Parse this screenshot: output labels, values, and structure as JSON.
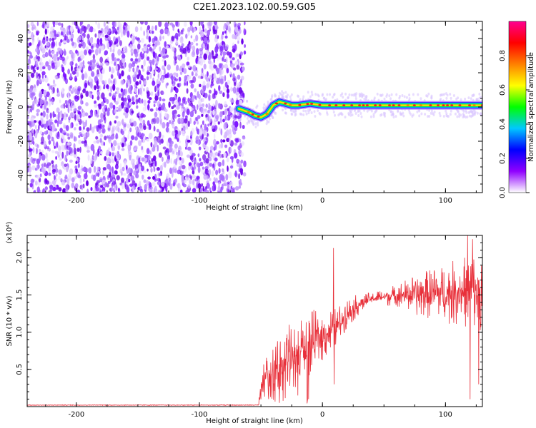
{
  "title": "C2E1.2023.102.00.59.G05",
  "chart_data": [
    {
      "type": "heatmap",
      "xlabel": "Height of straight line (km)",
      "ylabel": "Frequency (Hz)",
      "xlim": [
        -240,
        130
      ],
      "ylim": [
        -50,
        50
      ],
      "xticks": [
        -200,
        -100,
        0,
        100
      ],
      "yticks": [
        -40,
        -20,
        0,
        20,
        40
      ],
      "noise_region_x": [
        -240,
        -63
      ],
      "signal_track": {
        "x": [
          -68,
          -60,
          -55,
          -50,
          -45,
          -40,
          -35,
          -30,
          -25,
          -20,
          -10,
          0,
          20,
          40,
          60,
          80,
          100,
          130
        ],
        "y": [
          -1,
          -3,
          -5,
          -6,
          -4,
          1,
          3,
          2,
          1,
          1,
          2,
          1,
          1,
          1,
          1,
          1,
          1,
          1
        ]
      },
      "colorbar": {
        "label": "Normalized spectral amplitude",
        "range": [
          0,
          1
        ],
        "ticks": [
          "0.0",
          "0.2",
          "0.4",
          "0.6",
          "0.8"
        ],
        "colors": [
          "#ffffff",
          "#9000ff",
          "#0000ff",
          "#00c8ff",
          "#00ff00",
          "#ffff00",
          "#ff8000",
          "#ff0000",
          "#ff0090"
        ]
      }
    },
    {
      "type": "line",
      "xlabel": "Height of straight line (km)",
      "ylabel": "SNR (10 * v/v)",
      "scale_label": "(x10⁴)",
      "xlim": [
        -240,
        130
      ],
      "ylim": [
        0,
        2.3
      ],
      "xticks": [
        -200,
        -100,
        0,
        100
      ],
      "yticks": [
        "0.5",
        "1.0",
        "1.5",
        "2.0"
      ],
      "color": "#e8303a",
      "envelope": {
        "x": [
          -240,
          -52,
          -48,
          -40,
          -30,
          -20,
          -10,
          0,
          10,
          20,
          30,
          40,
          60,
          80,
          100,
          120,
          130
        ],
        "y": [
          0.02,
          0.02,
          0.35,
          0.5,
          0.6,
          0.7,
          0.85,
          0.95,
          1.05,
          1.25,
          1.38,
          1.45,
          1.5,
          1.5,
          1.52,
          1.55,
          1.55
        ]
      },
      "noise_amplitude": {
        "x": [
          -240,
          -52,
          -48,
          -30,
          -10,
          0,
          20,
          40,
          60,
          80,
          100,
          120,
          130
        ],
        "y": [
          0.005,
          0.005,
          0.25,
          0.4,
          0.45,
          0.35,
          0.2,
          0.08,
          0.15,
          0.3,
          0.4,
          0.5,
          0.55
        ]
      },
      "spikes": [
        {
          "x": 9,
          "y": 2.13
        },
        {
          "x": 9.5,
          "y": 0.3
        },
        {
          "x": 118,
          "y": 2.3
        },
        {
          "x": 120,
          "y": 0.1
        },
        {
          "x": -27,
          "y": 1.1
        },
        {
          "x": -20,
          "y": 0.15
        },
        {
          "x": -35,
          "y": 0.05
        },
        {
          "x": 122,
          "y": 2.25
        },
        {
          "x": 127,
          "y": 0.3
        }
      ]
    }
  ]
}
